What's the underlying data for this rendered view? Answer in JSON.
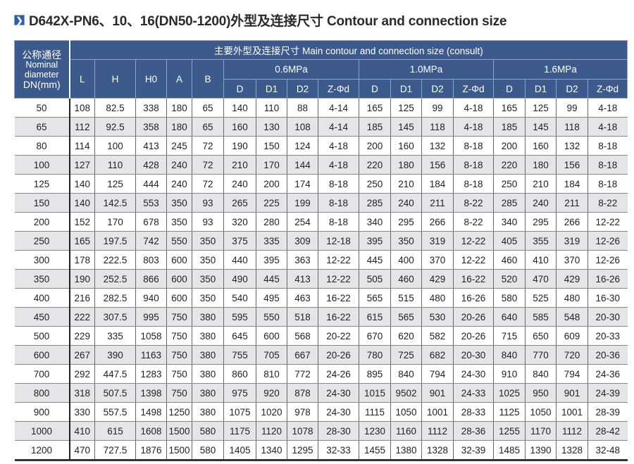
{
  "title": {
    "icon": "chevron-right-icon",
    "text": "D642X-PN6、10、16(DN50-1200)外型及连接尺寸 Contour and connection size"
  },
  "colors": {
    "header_bg": "#3d5a8c",
    "alt_row": "#e4e5e8"
  },
  "table": {
    "dn_header": {
      "zh": "公称通径",
      "en1": "Nominal",
      "en2": "diameter",
      "en3": "DN(mm)"
    },
    "main_header": "主要外型及连接尺寸 Main contour and connection size (consult)",
    "dim_headers": [
      "L",
      "H",
      "H0",
      "A",
      "B"
    ],
    "pressure_groups": [
      "0.6MPa",
      "1.0MPa",
      "1.6MPa"
    ],
    "sub_headers": [
      "D",
      "D1",
      "D2",
      "Z-Φd"
    ],
    "rows": [
      [
        "50",
        "108",
        "82.5",
        "338",
        "180",
        "65",
        "140",
        "110",
        "88",
        "4-14",
        "165",
        "125",
        "99",
        "4-18",
        "165",
        "125",
        "99",
        "4-18"
      ],
      [
        "65",
        "112",
        "92.5",
        "358",
        "180",
        "65",
        "160",
        "130",
        "108",
        "4-14",
        "185",
        "145",
        "118",
        "4-18",
        "185",
        "145",
        "118",
        "4-18"
      ],
      [
        "80",
        "114",
        "100",
        "413",
        "245",
        "72",
        "190",
        "150",
        "124",
        "4-18",
        "200",
        "160",
        "132",
        "8-18",
        "200",
        "160",
        "132",
        "8-18"
      ],
      [
        "100",
        "127",
        "110",
        "428",
        "240",
        "72",
        "210",
        "170",
        "144",
        "4-18",
        "220",
        "180",
        "156",
        "8-18",
        "220",
        "180",
        "156",
        "8-18"
      ],
      [
        "125",
        "140",
        "125",
        "444",
        "240",
        "72",
        "240",
        "200",
        "174",
        "8-18",
        "250",
        "210",
        "184",
        "8-18",
        "250",
        "210",
        "184",
        "8-18"
      ],
      [
        "150",
        "140",
        "142.5",
        "553",
        "350",
        "93",
        "265",
        "225",
        "199",
        "8-18",
        "285",
        "240",
        "211",
        "8-22",
        "285",
        "240",
        "211",
        "8-22"
      ],
      [
        "200",
        "152",
        "170",
        "678",
        "350",
        "93",
        "320",
        "280",
        "254",
        "8-18",
        "340",
        "295",
        "266",
        "8-22",
        "340",
        "295",
        "266",
        "12-22"
      ],
      [
        "250",
        "165",
        "197.5",
        "742",
        "550",
        "350",
        "375",
        "335",
        "309",
        "12-18",
        "395",
        "350",
        "319",
        "12-22",
        "405",
        "355",
        "319",
        "12-26"
      ],
      [
        "300",
        "178",
        "222.5",
        "803",
        "600",
        "350",
        "440",
        "395",
        "363",
        "12-22",
        "445",
        "400",
        "370",
        "12-22",
        "460",
        "410",
        "370",
        "12-26"
      ],
      [
        "350",
        "190",
        "252.5",
        "866",
        "600",
        "350",
        "490",
        "445",
        "413",
        "12-22",
        "505",
        "460",
        "429",
        "16-22",
        "520",
        "470",
        "429",
        "16-26"
      ],
      [
        "400",
        "216",
        "282.5",
        "940",
        "600",
        "350",
        "540",
        "495",
        "463",
        "16-22",
        "565",
        "515",
        "480",
        "16-26",
        "580",
        "525",
        "480",
        "16-30"
      ],
      [
        "450",
        "222",
        "307.5",
        "995",
        "750",
        "380",
        "595",
        "550",
        "518",
        "16-22",
        "615",
        "565",
        "530",
        "20-26",
        "640",
        "585",
        "548",
        "20-30"
      ],
      [
        "500",
        "229",
        "335",
        "1058",
        "750",
        "380",
        "645",
        "600",
        "568",
        "20-22",
        "670",
        "620",
        "582",
        "20-26",
        "715",
        "650",
        "609",
        "20-33"
      ],
      [
        "600",
        "267",
        "390",
        "1163",
        "750",
        "380",
        "755",
        "705",
        "667",
        "20-26",
        "780",
        "725",
        "682",
        "20-30",
        "840",
        "770",
        "720",
        "20-36"
      ],
      [
        "700",
        "292",
        "447.5",
        "1283",
        "750",
        "380",
        "860",
        "810",
        "772",
        "24-26",
        "895",
        "840",
        "794",
        "24-30",
        "910",
        "840",
        "794",
        "24-36"
      ],
      [
        "800",
        "318",
        "507.5",
        "1398",
        "750",
        "380",
        "975",
        "920",
        "878",
        "24-30",
        "1015",
        "9502",
        "901",
        "24-33",
        "1025",
        "950",
        "901",
        "24-39"
      ],
      [
        "900",
        "330",
        "557.5",
        "1498",
        "1250",
        "380",
        "1075",
        "1020",
        "978",
        "24-30",
        "1115",
        "1050",
        "1001",
        "28-33",
        "1125",
        "1050",
        "1001",
        "28-39"
      ],
      [
        "1000",
        "410",
        "615",
        "1608",
        "1500",
        "580",
        "1175",
        "1120",
        "1078",
        "28-30",
        "1230",
        "1160",
        "1112",
        "28-36",
        "1255",
        "1170",
        "1112",
        "28-42"
      ],
      [
        "1200",
        "470",
        "727.5",
        "1876",
        "1500",
        "580",
        "1405",
        "1340",
        "1295",
        "32-33",
        "1455",
        "1380",
        "1328",
        "32-39",
        "1485",
        "1390",
        "1328",
        "32-48"
      ]
    ]
  }
}
